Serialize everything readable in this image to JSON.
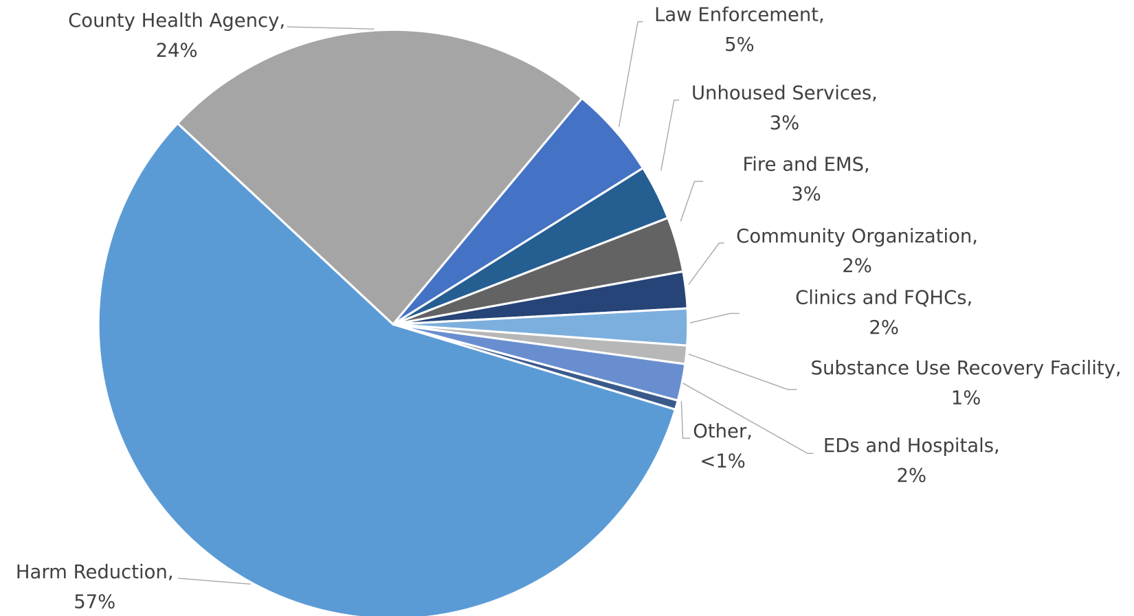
{
  "chart_data": {
    "type": "pie",
    "categories": [
      "Harm Reduction,",
      "County Health Agency,",
      "Law Enforcement,",
      "Unhoused Services,",
      "Fire and EMS,",
      "Community Organization,",
      "Clinics and FQHCs,",
      "Substance Use Recovery Facility,",
      "EDs and Hospitals,",
      "Other,"
    ],
    "values": [
      57,
      24,
      5,
      3,
      3,
      2,
      2,
      1,
      2,
      0.5
    ],
    "value_labels": [
      "57%",
      "24%",
      "5%",
      "3%",
      "3%",
      "2%",
      "2%",
      "1%",
      "2%",
      "<1%"
    ],
    "colors": [
      "#5b9bd5",
      "#a5a5a5",
      "#4472c4",
      "#255e91",
      "#636363",
      "#264478",
      "#7cafdd",
      "#b7b7b7",
      "#698ed0",
      "#3a5a8c"
    ]
  }
}
